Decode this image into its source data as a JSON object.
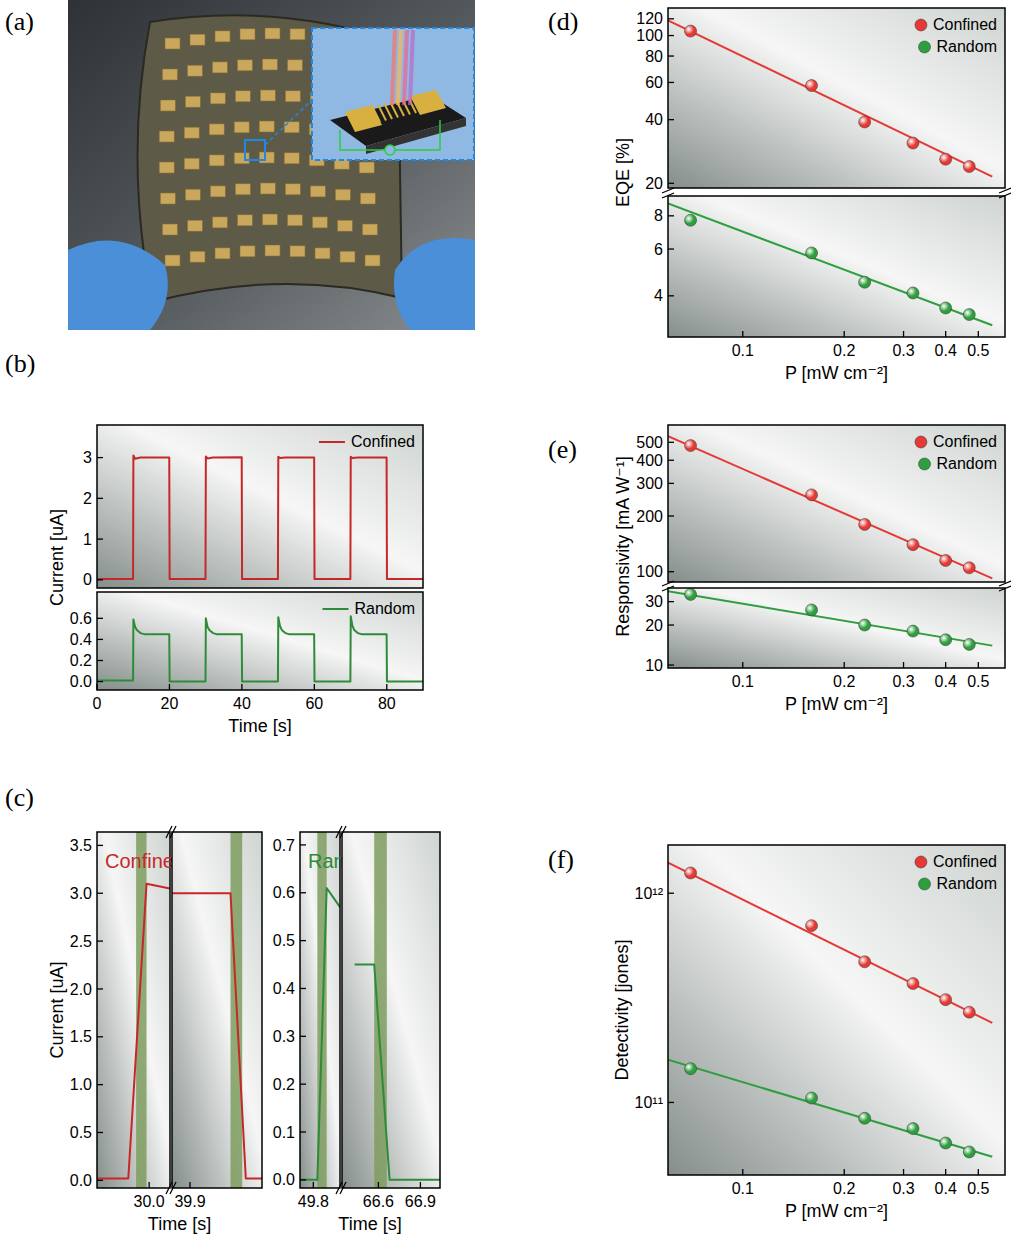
{
  "photo": {
    "panel": "(a)"
  },
  "chart_data": [
    {
      "type": "line",
      "panel": "(b)",
      "ylabel": "Current [uA]",
      "legend": "top-right",
      "xlim": [
        0,
        90
      ],
      "ylim": [
        -0.2,
        3.8
      ],
      "yticks": [
        0,
        1,
        2,
        3
      ],
      "x": [
        0,
        9.95,
        10.05,
        10.5,
        12,
        19.95,
        20.05,
        29.95,
        30.05,
        30.5,
        32,
        39.95,
        40.05,
        49.95,
        50.05,
        50.5,
        52,
        59.95,
        60.05,
        69.95,
        70.05,
        70.5,
        72,
        79.95,
        80.05,
        90
      ],
      "series": [
        {
          "name": "Confined",
          "color": "#c62828",
          "values": [
            0.02,
            0.02,
            3.05,
            2.97,
            3.0,
            3.0,
            0.02,
            0.02,
            3.03,
            2.98,
            3.0,
            3.01,
            0.02,
            0.02,
            3.02,
            2.99,
            3.0,
            3.0,
            0.02,
            0.02,
            3.02,
            2.99,
            3.0,
            3.0,
            0.02,
            0.02
          ]
        }
      ]
    },
    {
      "type": "line",
      "xlabel": "Time [s]",
      "legend": "top-right",
      "xlim": [
        0,
        90
      ],
      "ylim": [
        -0.08,
        0.85
      ],
      "xticks": [
        0,
        20,
        40,
        60,
        80
      ],
      "yticks": [
        {
          "value": 0,
          "label": "0.0"
        },
        0.2,
        0.4,
        0.6
      ],
      "x": [
        0,
        9.95,
        10.05,
        10.5,
        11,
        12,
        13,
        19.95,
        20.05,
        29.95,
        30.05,
        30.5,
        31,
        32,
        33,
        39.95,
        40.05,
        49.95,
        50.05,
        50.5,
        51,
        52,
        53,
        59.95,
        60.05,
        69.95,
        70.05,
        70.5,
        71,
        72,
        73,
        79.95,
        80.05,
        90
      ],
      "series": [
        {
          "name": "Random",
          "color": "#2e8b3a",
          "values": [
            0.01,
            0.01,
            0.59,
            0.52,
            0.49,
            0.46,
            0.45,
            0.45,
            0.0,
            0.0,
            0.6,
            0.52,
            0.49,
            0.46,
            0.45,
            0.45,
            0.0,
            0.0,
            0.61,
            0.53,
            0.49,
            0.46,
            0.45,
            0.45,
            0.0,
            0.0,
            0.62,
            0.53,
            0.49,
            0.46,
            0.45,
            0.45,
            0.0,
            0.0
          ]
        }
      ]
    },
    {
      "type": "line",
      "panel": "(c)",
      "ylabel": "Current [uA]",
      "xlabel": "Time [s]",
      "annotations": [
        "Confined"
      ],
      "xlim": [
        29.9,
        30.04
      ],
      "ylim": [
        -0.08,
        3.64
      ],
      "xticks": [
        {
          "value": 30,
          "label": "30.0"
        }
      ],
      "yticks": [
        {
          "value": 0,
          "label": "0.0"
        },
        0.5,
        {
          "value": 1,
          "label": "1.0"
        },
        1.5,
        {
          "value": 2,
          "label": "2.0"
        },
        2.5,
        {
          "value": 3,
          "label": "3.0"
        },
        3.5
      ],
      "bands": [
        [
          29.975,
          29.995
        ]
      ],
      "x": [
        29.9,
        29.96,
        29.995,
        30.04
      ],
      "series": [
        {
          "color": "#c62828",
          "values": [
            0.02,
            0.02,
            3.1,
            3.05
          ]
        }
      ]
    },
    {
      "type": "line",
      "xlim": [
        39.88,
        39.98
      ],
      "ylim": [
        -0.08,
        3.64
      ],
      "xticks": [
        39.9
      ],
      "bands": [
        [
          39.945,
          39.958
        ]
      ],
      "x": [
        39.88,
        39.945,
        39.962,
        39.98
      ],
      "series": [
        {
          "color": "#c62828",
          "values": [
            3.0,
            3.0,
            0.02,
            0.02
          ]
        }
      ]
    },
    {
      "type": "line",
      "xlabel": "Time [s]",
      "annotations": [
        "Random"
      ],
      "xlim": [
        49.7,
        50.0
      ],
      "ylim": [
        -0.017,
        0.727
      ],
      "xticks": [
        49.8
      ],
      "yticks": [
        {
          "value": 0,
          "label": "0.0"
        },
        0.1,
        0.2,
        0.3,
        0.4,
        0.5,
        0.6,
        0.7
      ],
      "bands": [
        [
          49.83,
          49.9
        ]
      ],
      "x": [
        49.7,
        49.83,
        49.9,
        50.0
      ],
      "series": [
        {
          "color": "#2e8b3a",
          "values": [
            0.0,
            0.0,
            0.61,
            0.57
          ]
        }
      ]
    },
    {
      "type": "line",
      "xlim": [
        66.34,
        67.04
      ],
      "ylim": [
        -0.017,
        0.727
      ],
      "xticks": [
        66.6,
        66.9
      ],
      "bands": [
        [
          66.57,
          66.66
        ]
      ],
      "x": [
        66.43,
        66.57,
        66.68,
        67.04
      ],
      "series": [
        {
          "color": "#2e8b3a",
          "values": [
            0.45,
            0.45,
            0.0,
            0.0
          ]
        }
      ]
    },
    {
      "type": "scatter",
      "panel": "(d)",
      "ylabel": "EQE [%]",
      "log": true,
      "legend": "top-right",
      "xlim": [
        0.06,
        0.6
      ],
      "ylim": [
        19,
        135
      ],
      "yticks": [
        20,
        40,
        60,
        80,
        100,
        120
      ],
      "x": [
        0.07,
        0.16,
        0.23,
        0.32,
        0.4,
        0.47
      ],
      "fit_x": [
        0.06,
        0.55
      ],
      "series": [
        {
          "name": "Confined",
          "color": "#e53935",
          "marker": "circle",
          "values": [
            105,
            58,
            39,
            31,
            26,
            24
          ],
          "fit_values": [
            118,
            21.5
          ]
        }
      ]
    },
    {
      "type": "scatter",
      "xlabel": "P [mW cm⁻²]",
      "log": true,
      "xlim": [
        0.06,
        0.6
      ],
      "ylim": [
        2.8,
        9.5
      ],
      "xticks": [
        0.1,
        0.2,
        0.3,
        0.4,
        0.5
      ],
      "yticks": [
        4,
        6,
        8
      ],
      "x": [
        0.07,
        0.16,
        0.23,
        0.32,
        0.4,
        0.47
      ],
      "fit_x": [
        0.06,
        0.55
      ],
      "series": [
        {
          "name": "Random",
          "color": "#2e9e3e",
          "marker": "circle",
          "values": [
            7.7,
            5.8,
            4.5,
            4.1,
            3.6,
            3.4
          ],
          "fit_values": [
            8.9,
            3.1
          ]
        }
      ]
    },
    {
      "type": "scatter",
      "panel": "(e)",
      "ylabel": "Responsivity [mA W⁻¹]",
      "log": true,
      "legend": "top-right",
      "xlim": [
        0.06,
        0.6
      ],
      "ylim": [
        88,
        620
      ],
      "yticks": [
        100,
        200,
        300,
        400,
        500
      ],
      "x": [
        0.07,
        0.16,
        0.23,
        0.32,
        0.4,
        0.47
      ],
      "fit_x": [
        0.06,
        0.55
      ],
      "series": [
        {
          "name": "Confined",
          "color": "#e53935",
          "marker": "circle",
          "values": [
            480,
            260,
            180,
            140,
            115,
            105
          ],
          "fit_values": [
            540,
            92
          ]
        }
      ]
    },
    {
      "type": "scatter",
      "xlabel": "P [mW cm⁻²]",
      "log": true,
      "xlim": [
        0.06,
        0.6
      ],
      "ylim": [
        9.5,
        38
      ],
      "xticks": [
        0.1,
        0.2,
        0.3,
        0.4,
        0.5
      ],
      "yticks": [
        10,
        20,
        30
      ],
      "x": [
        0.07,
        0.16,
        0.23,
        0.32,
        0.4,
        0.47
      ],
      "fit_x": [
        0.06,
        0.55
      ],
      "series": [
        {
          "name": "Random",
          "color": "#2e9e3e",
          "marker": "circle",
          "values": [
            34,
            26,
            20,
            18,
            15.5,
            14.3
          ],
          "fit_values": [
            36,
            14
          ]
        }
      ]
    },
    {
      "type": "scatter",
      "panel": "(f)",
      "ylabel": "Detectivity [jones]",
      "xlabel": "P [mW cm⁻²]",
      "log": true,
      "legend": "top-right",
      "xlim": [
        0.06,
        0.6
      ],
      "ylim": [
        45000000000,
        1700000000000
      ],
      "xticks": [
        0.1,
        0.2,
        0.3,
        0.4,
        0.5
      ],
      "yticks": [
        {
          "value": 100000000000,
          "label": "10¹¹"
        },
        {
          "value": 1000000000000,
          "label": "10¹²"
        }
      ],
      "x": [
        0.07,
        0.16,
        0.23,
        0.32,
        0.4,
        0.47
      ],
      "fit_x": [
        0.06,
        0.55
      ],
      "series": [
        {
          "name": "Confined",
          "color": "#e53935",
          "marker": "circle",
          "values": [
            1250000000000,
            700000000000,
            470000000000,
            370000000000,
            310000000000,
            270000000000
          ],
          "fit_values": [
            1400000000000,
            240000000000
          ]
        },
        {
          "name": "Random",
          "color": "#2e9e3e",
          "marker": "circle",
          "values": [
            145000000000,
            105000000000,
            84000000000,
            75000000000,
            64000000000,
            58000000000
          ],
          "fit_values": [
            160000000000,
            55000000000
          ]
        }
      ]
    }
  ]
}
